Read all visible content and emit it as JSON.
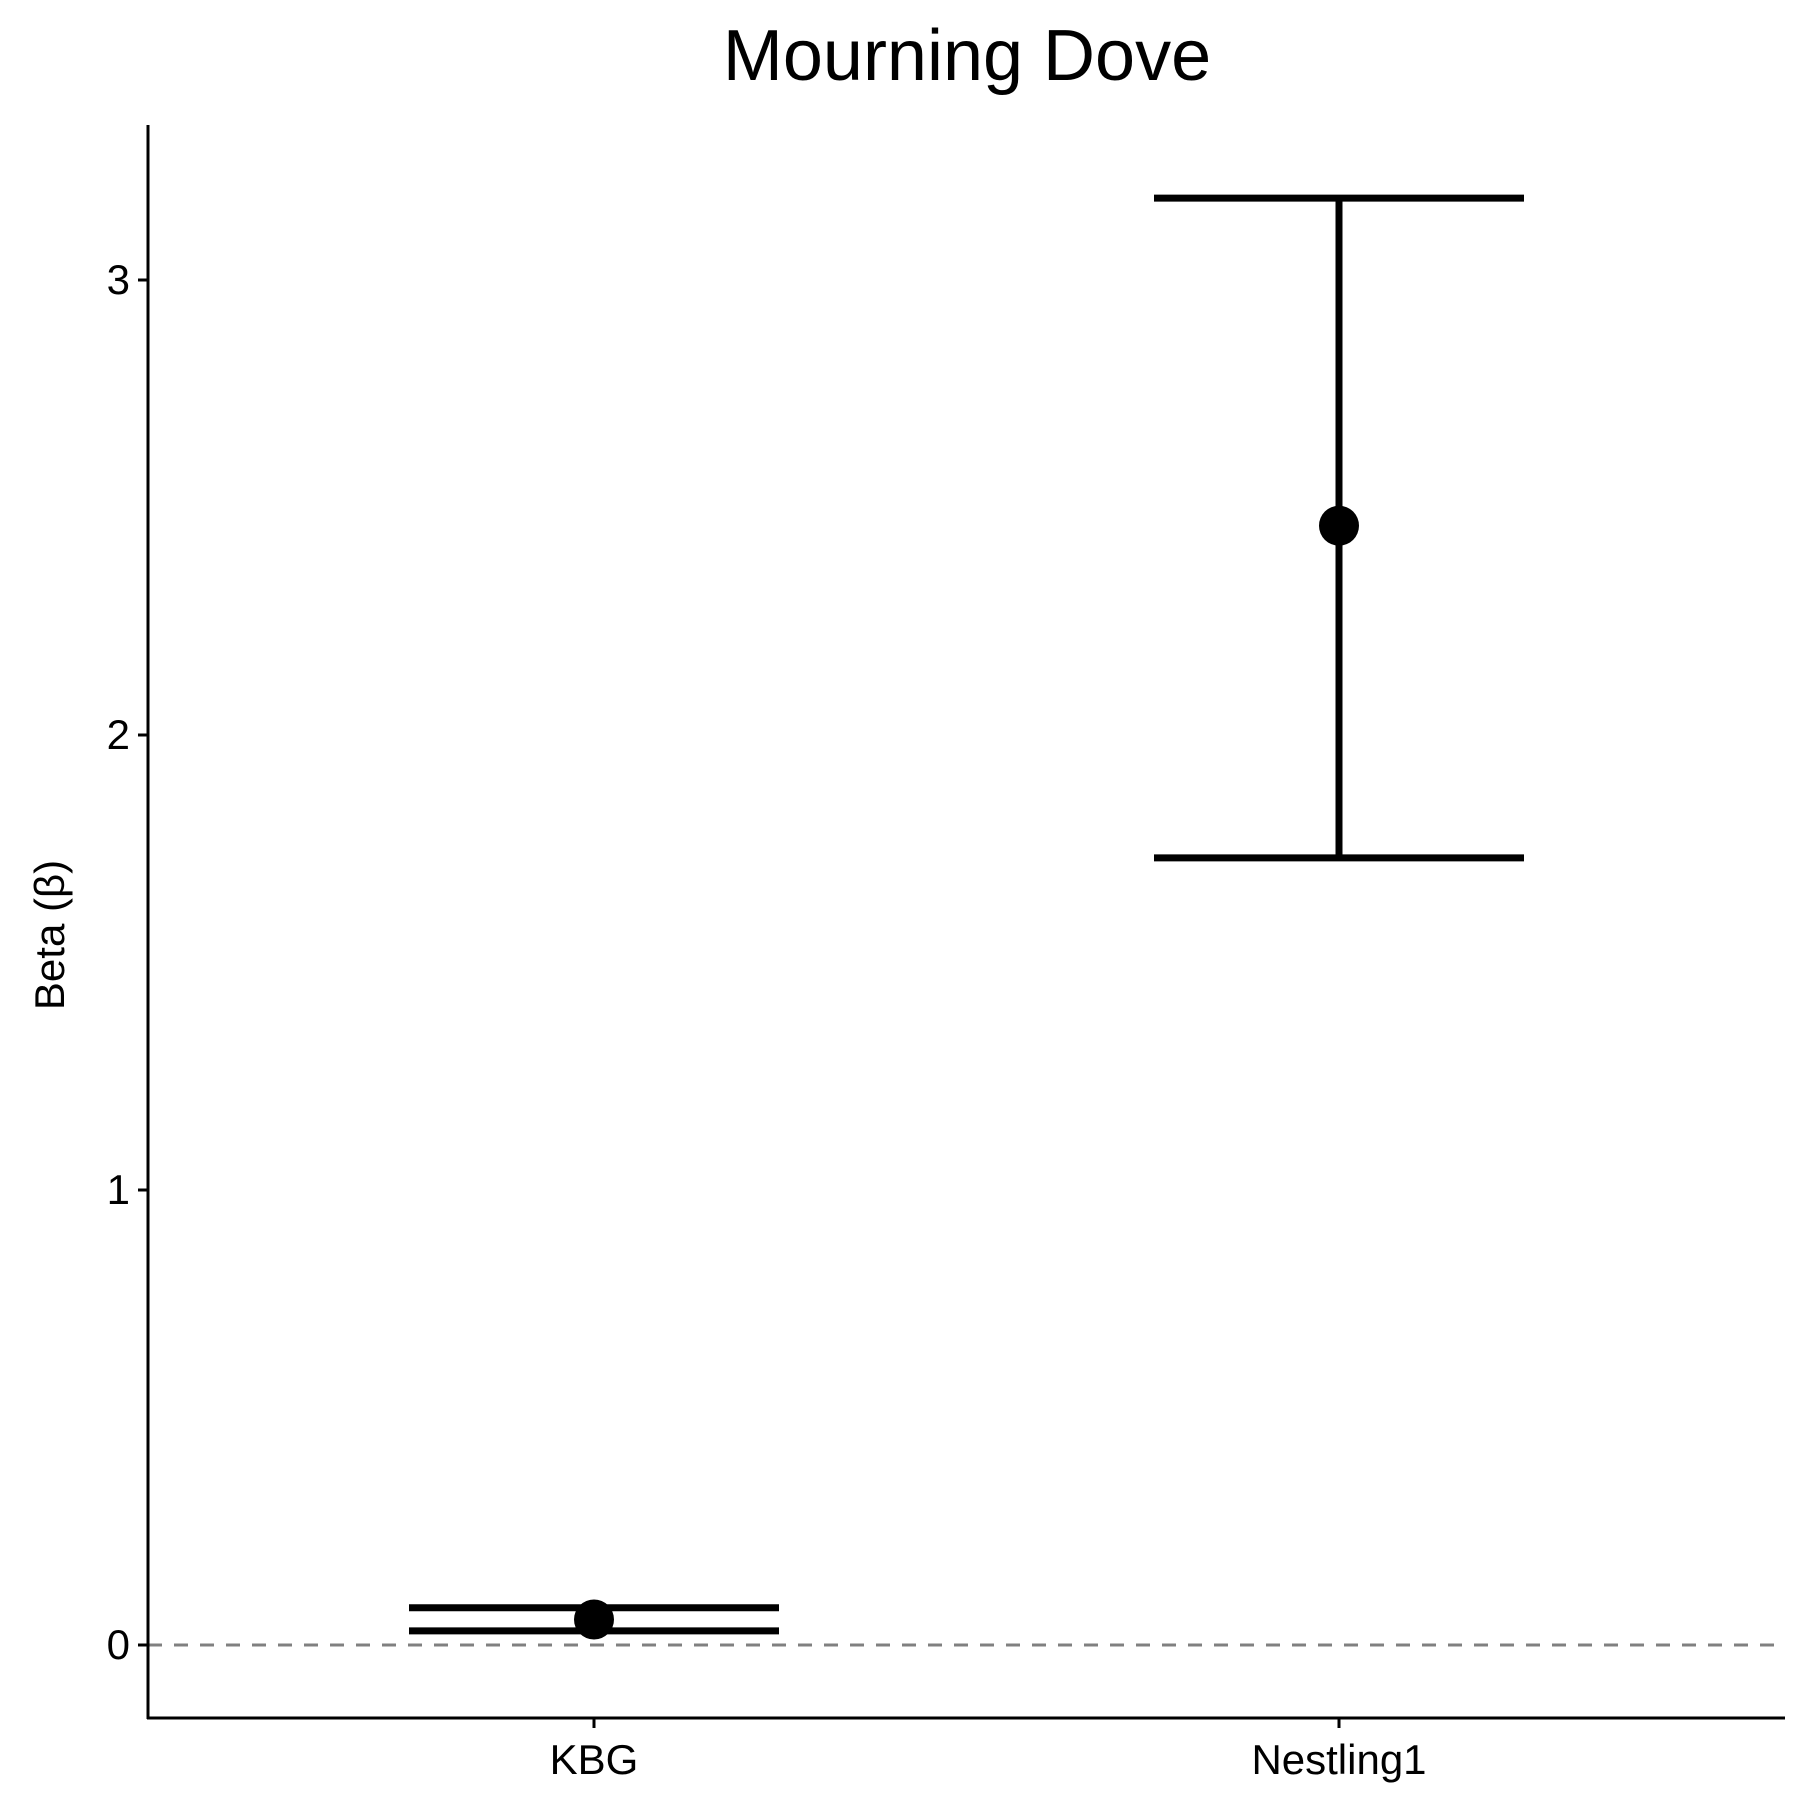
{
  "chart_data": {
    "type": "scatter",
    "title": "Mourning Dove",
    "xlabel": "",
    "ylabel": "Beta (β)",
    "categories": [
      "KBG",
      "Nestling1"
    ],
    "series": [
      {
        "points": [
          {
            "category": "KBG",
            "y": 0.056,
            "ymin": 0.031,
            "ymax": 0.082
          },
          {
            "category": "Nestling1",
            "y": 2.46,
            "ymin": 1.73,
            "ymax": 3.18
          }
        ]
      }
    ],
    "ylim": [
      -0.16,
      3.35
    ],
    "yticks": [
      0,
      1,
      2,
      3
    ],
    "reference_line": {
      "y": 0,
      "style": "dashed",
      "color": "#808080"
    },
    "grid": false,
    "legend": "none",
    "colors": {
      "points": "#000000",
      "axis": "#000000",
      "reference": "#808080"
    }
  }
}
